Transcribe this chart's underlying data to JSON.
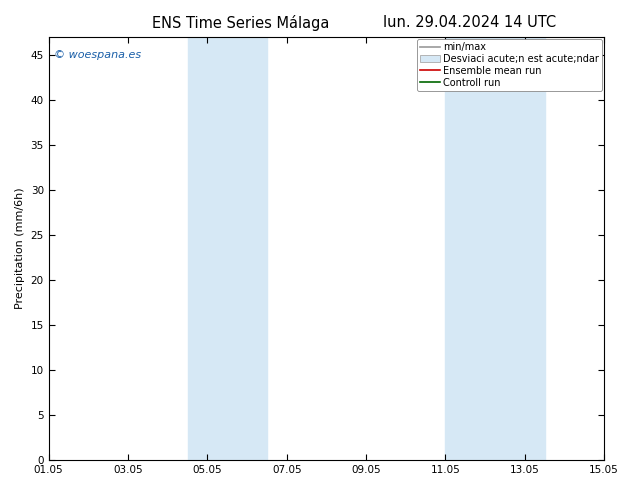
{
  "title_left": "ENS Time Series Málaga",
  "title_right": "lun. 29.04.2024 14 UTC",
  "ylabel": "Precipitation (mm/6h)",
  "watermark": "© woespana.es",
  "ylim": [
    0,
    47
  ],
  "yticks": [
    0,
    5,
    10,
    15,
    20,
    25,
    30,
    35,
    40,
    45
  ],
  "xlim": [
    0,
    14
  ],
  "xtick_labels": [
    "01.05",
    "03.05",
    "05.05",
    "07.05",
    "09.05",
    "11.05",
    "13.05",
    "15.05"
  ],
  "xtick_positions_days": [
    0,
    2,
    4,
    6,
    8,
    10,
    12,
    14
  ],
  "shade_bands": [
    {
      "start_day": 3.5,
      "end_day": 5.5
    },
    {
      "start_day": 10.0,
      "end_day": 12.5
    }
  ],
  "shade_color": "#d6e8f5",
  "legend_labels": [
    "min/max",
    "Desviaci acute;n est acute;ndar",
    "Ensemble mean run",
    "Controll run"
  ],
  "legend_line_color": "#999999",
  "legend_patch_color": "#d6e8f5",
  "legend_patch_edge": "#aaaaaa",
  "ensemble_color": "#cc0000",
  "controll_color": "#006600",
  "background_color": "#ffffff",
  "title_fontsize": 10.5,
  "tick_fontsize": 7.5,
  "ylabel_fontsize": 8,
  "legend_fontsize": 7,
  "watermark_fontsize": 8
}
